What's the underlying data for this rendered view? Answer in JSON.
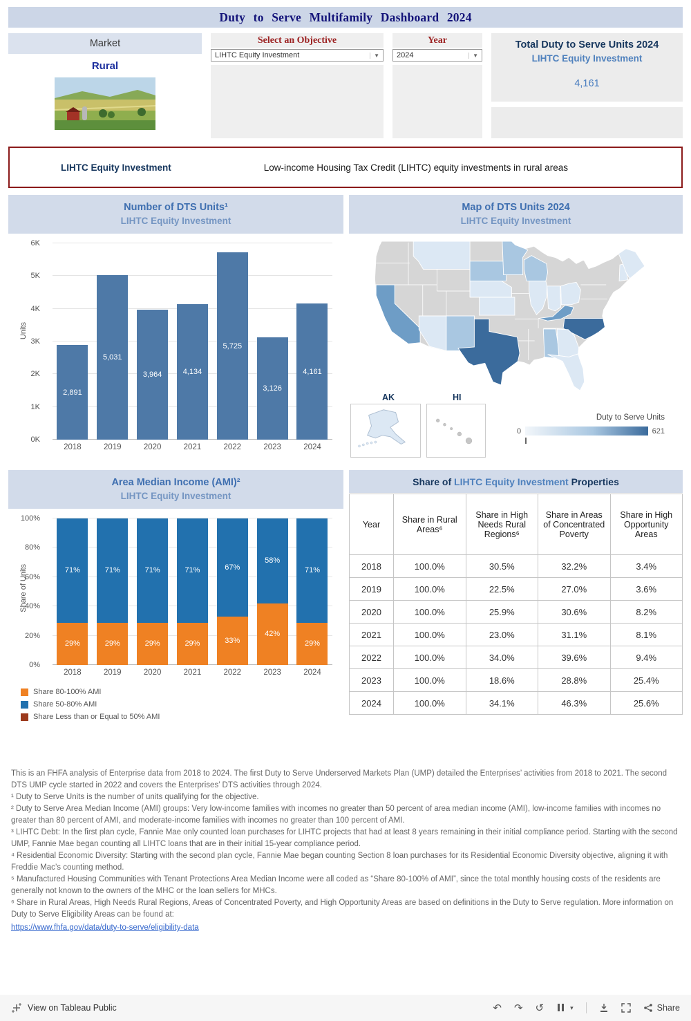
{
  "header": {
    "title": "Duty to Serve Multifamily Dashboard 2024"
  },
  "filters": {
    "market_label": "Market",
    "market_value": "Rural",
    "objective_label": "Select an Objective",
    "objective_value": "LIHTC Equity Investment",
    "year_label": "Year",
    "year_value": "2024"
  },
  "total": {
    "title": "Total Duty to Serve Units 2024",
    "subtitle": "LIHTC Equity Investment",
    "value": "4,161"
  },
  "objective_banner": {
    "name": "LIHTC Equity Investment",
    "description": "Low-income Housing Tax Credit (LIHTC) equity investments in rural areas"
  },
  "colors": {
    "accent_navy": "#17375e",
    "accent_steel": "#4f81bd",
    "filter_red": "#9c2121",
    "banner_border": "#8b1a1a",
    "link_blue": "#3366cc"
  },
  "chart_data": [
    {
      "type": "bar",
      "title": "Number of DTS Units¹",
      "subtitle": "LIHTC Equity Investment",
      "ylabel": "Units",
      "yticks": [
        "0K",
        "1K",
        "2K",
        "3K",
        "4K",
        "5K",
        "6K"
      ],
      "ylim": [
        0,
        6000
      ],
      "categories": [
        "2018",
        "2019",
        "2020",
        "2021",
        "2022",
        "2023",
        "2024"
      ],
      "values": [
        2891,
        5031,
        3964,
        4134,
        5725,
        3126,
        4161
      ],
      "labels": [
        "2,891",
        "5,031",
        "3,964",
        "4,134",
        "5,725",
        "3,126",
        "4,161"
      ],
      "bar_color": "#4e79a7",
      "grid": true,
      "legend_position": "none"
    },
    {
      "type": "heatmap",
      "subtype": "choropleth-map",
      "title": "Map of DTS Units 2024",
      "subtitle": "LIHTC Equity Investment",
      "legend_title": "Duty to Serve Units",
      "legend_min": "0",
      "legend_max": "621",
      "insets": [
        "AK",
        "HI"
      ],
      "shade_levels": {
        "d1": "#dce8f4",
        "d2": "#a9c7e1",
        "d3": "#6e9dc6",
        "d4": "#3b6b9c"
      },
      "states": {
        "TX": "d4",
        "NC": "d4",
        "CA": "d3",
        "KY": "d3",
        "WI": "d2",
        "MN": "d2",
        "SD": "d2",
        "AL": "d2",
        "NM": "d2",
        "MT": "d1",
        "NE": "d1",
        "IL": "d1",
        "IN": "d1",
        "OH": "d1",
        "KS": "d1",
        "AZ": "d1",
        "FL": "d1",
        "GA": "d1",
        "NH": "d1",
        "ME": "d1",
        "AK": "d1"
      }
    },
    {
      "type": "bar",
      "subtype": "stacked",
      "title": "Area Median Income (AMI)²",
      "subtitle": "LIHTC Equity Investment",
      "ylabel": "Share of Units",
      "yticks": [
        "0%",
        "20%",
        "40%",
        "60%",
        "80%",
        "100%"
      ],
      "categories": [
        "2018",
        "2019",
        "2020",
        "2021",
        "2022",
        "2023",
        "2024"
      ],
      "series": [
        {
          "name": "Share 80-100% AMI",
          "color": "#ef8123",
          "values": [
            29,
            29,
            29,
            29,
            33,
            42,
            29
          ]
        },
        {
          "name": "Share 50-80% AMI",
          "color": "#2271ae",
          "values": [
            71,
            71,
            71,
            71,
            67,
            58,
            71
          ]
        },
        {
          "name": "Share Less than or Equal to 50% AMI",
          "color": "#9c3a1d",
          "values": [
            0,
            0,
            0,
            0,
            0,
            0,
            0
          ]
        }
      ],
      "legend_position": "bottom-left"
    },
    {
      "type": "table",
      "title_prefix": "Share of ",
      "title_highlight": "LIHTC Equity Investment",
      "title_suffix": " Properties",
      "columns": [
        "Year",
        "Share in Rural Areas⁶",
        "Share in High Needs Rural Regions⁶",
        "Share in Areas of Concentrated Poverty",
        "Share in High Opportunity Areas"
      ],
      "rows": [
        [
          "2018",
          "100.0%",
          "30.5%",
          "32.2%",
          "3.4%"
        ],
        [
          "2019",
          "100.0%",
          "22.5%",
          "27.0%",
          "3.6%"
        ],
        [
          "2020",
          "100.0%",
          "25.9%",
          "30.6%",
          "8.2%"
        ],
        [
          "2021",
          "100.0%",
          "23.0%",
          "31.1%",
          "8.1%"
        ],
        [
          "2022",
          "100.0%",
          "34.0%",
          "39.6%",
          "9.4%"
        ],
        [
          "2023",
          "100.0%",
          "18.6%",
          "28.8%",
          "25.4%"
        ],
        [
          "2024",
          "100.0%",
          "34.1%",
          "46.3%",
          "25.6%"
        ]
      ]
    }
  ],
  "footnotes": [
    "This is an FHFA analysis of Enterprise data from 2018 to 2024. The first Duty to Serve Underserved Markets Plan (UMP) detailed the Enterprises’ activities from 2018 to 2021. The second DTS UMP cycle started in 2022 and covers the Enterprises’ DTS activities through 2024.",
    "¹ Duty to Serve Units is the number of units qualifying for the objective.",
    "² Duty to Serve Area Median Income (AMI) groups: Very low-income families with incomes no greater than 50 percent of area median income (AMI), low-income families with incomes no greater than 80 percent of AMI, and moderate-income families with incomes no greater than 100 percent of AMI.",
    "³ LIHTC Debt: In the first plan cycle, Fannie Mae only counted loan purchases for LIHTC projects that had at least 8 years remaining in their initial compliance period. Starting with the second UMP, Fannie Mae began counting all LIHTC loans that are in their initial 15-year compliance period.",
    "⁴ Residential Economic Diversity: Starting with the second plan cycle, Fannie Mae began counting Section 8 loan purchases for its Residential Economic Diversity objective, aligning it with Freddie Mac’s counting method.",
    "⁵  Manufactured Housing Communities with Tenant Protections Area Median Income were all coded as “Share 80-100% of AMI”, since the total monthly housing costs of the residents are generally not known to the owners of the MHC or the loan sellers for MHCs.",
    "⁶ Share in Rural Areas, High Needs Rural Regions, Areas of Concentrated Poverty, and High Opportunity Areas are based on definitions in the Duty to Serve regulation. More information on Duty to Serve Eligibility Areas can be found at:"
  ],
  "footnote_link": "https://www.fhfa.gov/data/duty-to-serve/eligibility-data",
  "footer": {
    "left_label": "View on Tableau Public",
    "share_label": "Share"
  }
}
